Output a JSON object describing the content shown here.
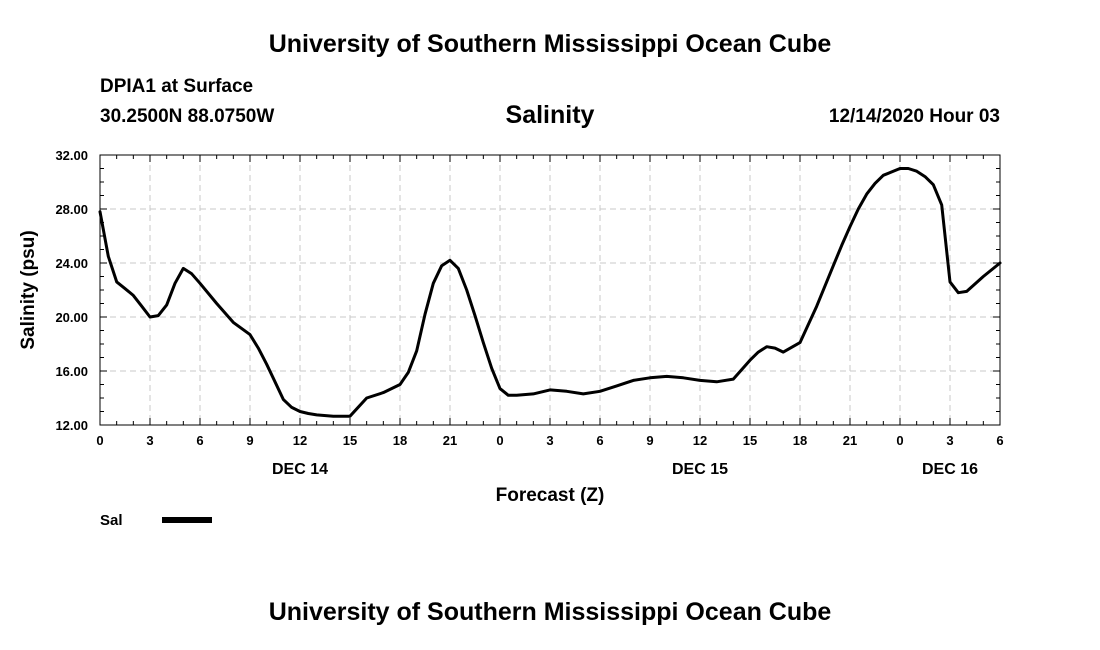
{
  "header": {
    "title": "University of Southern Mississippi Ocean Cube",
    "station": "DPIA1 at Surface",
    "coords": "30.2500N 88.0750W",
    "parameter": "Salinity",
    "datetime": "12/14/2020 Hour 03"
  },
  "footer": {
    "title": "University of Southern Mississippi Ocean Cube"
  },
  "colors": {
    "line": "#000000",
    "grid": "#c8c8c8",
    "axis": "#000000"
  },
  "chart_data": {
    "type": "line",
    "title": "Salinity",
    "xlabel": "Forecast (Z)",
    "ylabel": "Salinity (psu)",
    "xlim": [
      0,
      54
    ],
    "ylim": [
      12,
      32
    ],
    "x_ticks": [
      0,
      3,
      6,
      9,
      12,
      15,
      18,
      21,
      24,
      27,
      30,
      33,
      36,
      39,
      42,
      45,
      48,
      51,
      54
    ],
    "x_tick_labels": [
      "0",
      "3",
      "6",
      "9",
      "12",
      "15",
      "18",
      "21",
      "0",
      "3",
      "6",
      "9",
      "12",
      "15",
      "18",
      "21",
      "0",
      "3",
      "6"
    ],
    "y_ticks": [
      12,
      16,
      20,
      24,
      28,
      32
    ],
    "y_tick_labels": [
      "12.00",
      "16.00",
      "20.00",
      "24.00",
      "28.00",
      "32.00"
    ],
    "day_labels": [
      {
        "label": "DEC 14",
        "x": 12
      },
      {
        "label": "DEC 15",
        "x": 36
      },
      {
        "label": "DEC 16",
        "x": 51
      }
    ],
    "grid": true,
    "legend": [
      {
        "label": "Sal",
        "position": "bottom-left"
      }
    ],
    "series": [
      {
        "name": "Sal",
        "x": [
          0,
          0.5,
          1,
          1.5,
          2,
          2.5,
          3,
          3.5,
          4,
          4.5,
          5,
          5.5,
          6,
          7,
          8,
          9,
          9.5,
          10,
          10.5,
          11,
          11.5,
          12,
          12.5,
          13,
          14,
          15,
          16,
          17,
          18,
          18.5,
          19,
          19.5,
          20,
          20.5,
          21,
          21.5,
          22,
          22.5,
          23,
          23.5,
          24,
          24.5,
          25,
          26,
          27,
          28,
          29,
          30,
          31,
          32,
          33,
          34,
          35,
          36,
          37,
          38,
          38.5,
          39,
          39.5,
          40,
          40.5,
          41,
          42,
          43,
          43.5,
          44,
          44.5,
          45,
          45.5,
          46,
          46.5,
          47,
          48,
          48.5,
          49,
          49.5,
          50,
          50.5,
          51,
          51.5,
          52,
          53,
          54
        ],
        "values": [
          27.8,
          24.5,
          22.6,
          22.1,
          21.6,
          20.8,
          20.0,
          20.1,
          20.9,
          22.5,
          23.6,
          23.2,
          22.5,
          21.0,
          19.6,
          18.7,
          17.7,
          16.5,
          15.2,
          13.9,
          13.3,
          13.0,
          12.85,
          12.75,
          12.65,
          12.65,
          14.0,
          14.4,
          15.0,
          15.9,
          17.5,
          20.2,
          22.5,
          23.8,
          24.2,
          23.6,
          22.0,
          20.1,
          18.1,
          16.2,
          14.7,
          14.2,
          14.2,
          14.3,
          14.6,
          14.5,
          14.3,
          14.5,
          14.9,
          15.3,
          15.5,
          15.6,
          15.5,
          15.3,
          15.2,
          15.4,
          16.1,
          16.8,
          17.4,
          17.8,
          17.7,
          17.4,
          18.1,
          20.8,
          22.3,
          23.8,
          25.3,
          26.7,
          28.0,
          29.1,
          29.9,
          30.5,
          31.0,
          31.0,
          30.8,
          30.4,
          29.8,
          28.3,
          22.6,
          21.8,
          21.9,
          23.0,
          24.0
        ]
      }
    ]
  }
}
